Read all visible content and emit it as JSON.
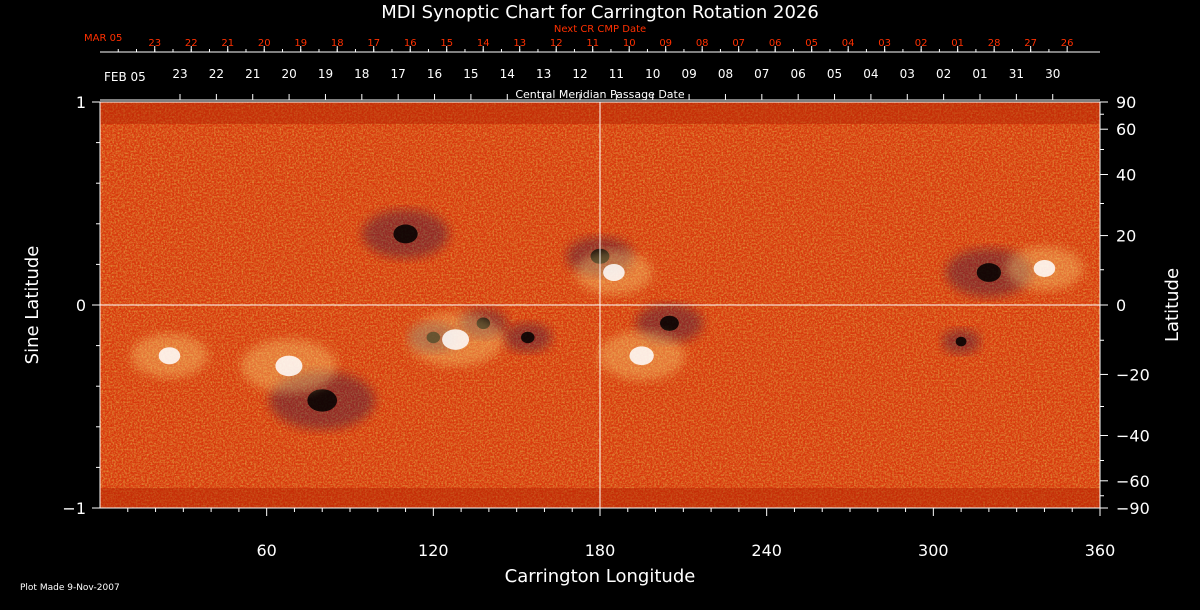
{
  "chart_data": {
    "type": "heatmap",
    "title": "MDI Synoptic Chart for Carrington Rotation 2026",
    "xlabel": "Carrington Longitude",
    "ylabel_left": "Sine Latitude",
    "ylabel_right": "Latitude",
    "xlim": [
      0,
      360
    ],
    "ylim": [
      -1,
      1
    ],
    "x_ticks": [
      60,
      120,
      180,
      240,
      300,
      360
    ],
    "y_ticks_left": [
      {
        "value": 1,
        "label": "1"
      },
      {
        "value": 0,
        "label": "0"
      },
      {
        "value": -1,
        "label": "−1"
      }
    ],
    "y_ticks_right": [
      {
        "deg": 90,
        "label": "90"
      },
      {
        "deg": 60,
        "label": "60"
      },
      {
        "deg": 40,
        "label": "40"
      },
      {
        "deg": 20,
        "label": "20"
      },
      {
        "deg": 0,
        "label": "0"
      },
      {
        "deg": -20,
        "label": "−20"
      },
      {
        "deg": -40,
        "label": "−40"
      },
      {
        "deg": -60,
        "label": "−60"
      },
      {
        "deg": -90,
        "label": "−90"
      }
    ],
    "top_axis": {
      "title": "Central Meridian Passage Date",
      "start_label": "FEB 05",
      "labels": [
        "23",
        "22",
        "21",
        "20",
        "19",
        "18",
        "17",
        "16",
        "15",
        "14",
        "13",
        "12",
        "11",
        "10",
        "09",
        "08",
        "07",
        "06",
        "05",
        "04",
        "03",
        "02",
        "01",
        "31",
        "30"
      ]
    },
    "next_cr_axis": {
      "title": "Next CR CMP Date",
      "start_label": "MAR 05",
      "labels": [
        "23",
        "22",
        "21",
        "20",
        "19",
        "18",
        "17",
        "16",
        "15",
        "14",
        "13",
        "12",
        "11",
        "10",
        "09",
        "08",
        "07",
        "06",
        "05",
        "04",
        "03",
        "02",
        "01",
        "28",
        "27",
        "26"
      ]
    },
    "features": [
      {
        "polarity": "negative",
        "lon": 180,
        "sinlat": 0.24,
        "r": 0.05
      },
      {
        "polarity": "positive",
        "lon": 185,
        "sinlat": 0.16,
        "r": 0.06
      },
      {
        "polarity": "negative",
        "lon": 120,
        "sinlat": -0.16,
        "r": 0.03
      },
      {
        "polarity": "negative",
        "lon": 138,
        "sinlat": -0.09,
        "r": 0.03
      },
      {
        "polarity": "negative",
        "lon": 154,
        "sinlat": -0.16,
        "r": 0.03
      },
      {
        "polarity": "positive",
        "lon": 128,
        "sinlat": -0.17,
        "r": 0.08
      },
      {
        "polarity": "negative",
        "lon": 205,
        "sinlat": -0.09,
        "r": 0.05
      },
      {
        "polarity": "positive",
        "lon": 195,
        "sinlat": -0.25,
        "r": 0.07
      },
      {
        "polarity": "negative",
        "lon": 310,
        "sinlat": -0.18,
        "r": 0.02
      },
      {
        "polarity": "negative",
        "lon": 80,
        "sinlat": -0.47,
        "r": 0.09
      },
      {
        "polarity": "positive",
        "lon": 68,
        "sinlat": -0.3,
        "r": 0.08
      },
      {
        "polarity": "negative",
        "lon": 320,
        "sinlat": 0.16,
        "r": 0.07
      },
      {
        "polarity": "positive",
        "lon": 340,
        "sinlat": 0.18,
        "r": 0.06
      },
      {
        "polarity": "negative",
        "lon": 110,
        "sinlat": 0.35,
        "r": 0.07
      },
      {
        "polarity": "positive",
        "lon": 25,
        "sinlat": -0.25,
        "r": 0.06
      }
    ],
    "grid": "center-lines",
    "colors": {
      "background": "#000000",
      "field_base": "#e04010",
      "positive": "#ffe080",
      "negative": "#1a0a50",
      "header_red": "#ff3000",
      "axis": "#ffffff"
    }
  },
  "footer": {
    "plot_made": "Plot Made  9-Nov-2007"
  }
}
